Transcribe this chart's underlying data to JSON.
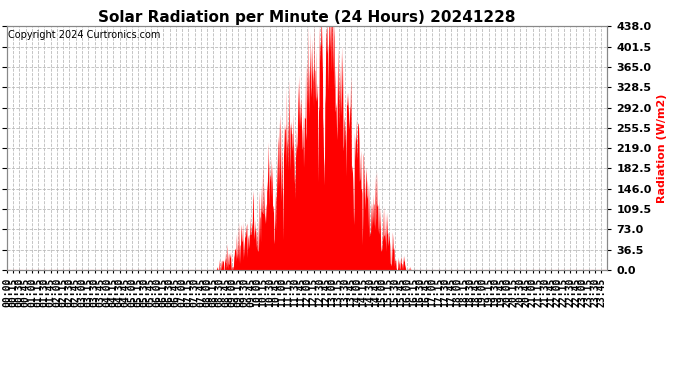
{
  "title": "Solar Radiation per Minute (24 Hours) 20241228",
  "copyright": "Copyright 2024 Curtronics.com",
  "ylabel": "Radiation (W/m2)",
  "ylabel_color": "#ff0000",
  "background_color": "#ffffff",
  "plot_bg_color": "#ffffff",
  "fill_color": "#ff0000",
  "grid_color": "#bbbbbb",
  "zero_line_color": "#ff0000",
  "yticks": [
    0.0,
    36.5,
    73.0,
    109.5,
    146.0,
    182.5,
    219.0,
    255.5,
    292.0,
    328.5,
    365.0,
    401.5,
    438.0
  ],
  "ymax": 438.0,
  "ymin": 0.0,
  "sunrise_min": 500,
  "sunset_min": 970,
  "peak_min": 770,
  "peak_val": 438.0,
  "title_fontsize": 11,
  "axis_fontsize": 7,
  "copyright_fontsize": 7
}
